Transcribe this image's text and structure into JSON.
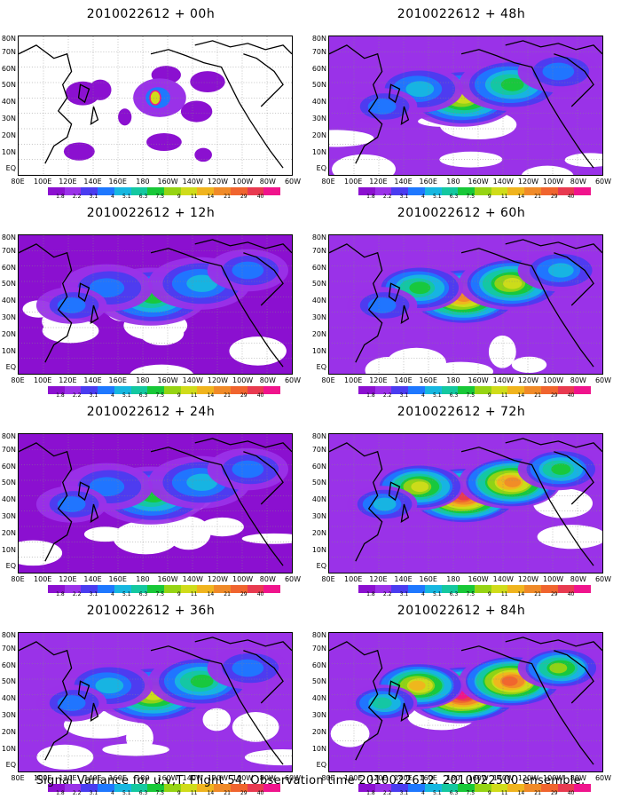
{
  "panels": [
    {
      "title": "2010022612 + 00h",
      "level": 0
    },
    {
      "title": "2010022612 + 48h",
      "level": 2
    },
    {
      "title": "2010022612 + 12h",
      "level": 1
    },
    {
      "title": "2010022612 + 60h",
      "level": 3
    },
    {
      "title": "2010022612 + 24h",
      "level": 1
    },
    {
      "title": "2010022612 + 72h",
      "level": 4
    },
    {
      "title": "2010022612 + 36h",
      "level": 2
    },
    {
      "title": "2010022612 + 84h",
      "level": 5
    }
  ],
  "lat_labels": [
    "80N",
    "70N",
    "60N",
    "50N",
    "40N",
    "30N",
    "20N",
    "10N",
    "EQ"
  ],
  "lon_labels": [
    "80E",
    "100E",
    "120E",
    "140E",
    "160E",
    "180",
    "160W",
    "140W",
    "120W",
    "100W",
    "80W",
    "60W"
  ],
  "colorbar": {
    "labels": [
      "1.8",
      "2.2",
      "3.1",
      "4",
      "5.1",
      "6.3",
      "7.5",
      "9",
      "11",
      "14",
      "21",
      "29",
      "40",
      ""
    ],
    "colors": [
      "#8b10d0",
      "#9a32e8",
      "#4a3cf0",
      "#1e78ff",
      "#17b7e0",
      "#14c8a0",
      "#18c838",
      "#96d414",
      "#d0dc1a",
      "#f0b41e",
      "#f08a28",
      "#f0642e",
      "#e83a50",
      "#f0148c"
    ]
  },
  "caption": "Signal Variance for u,v,T. Flight 54. Observation time 2010022612. 2010022500 ensemble."
}
